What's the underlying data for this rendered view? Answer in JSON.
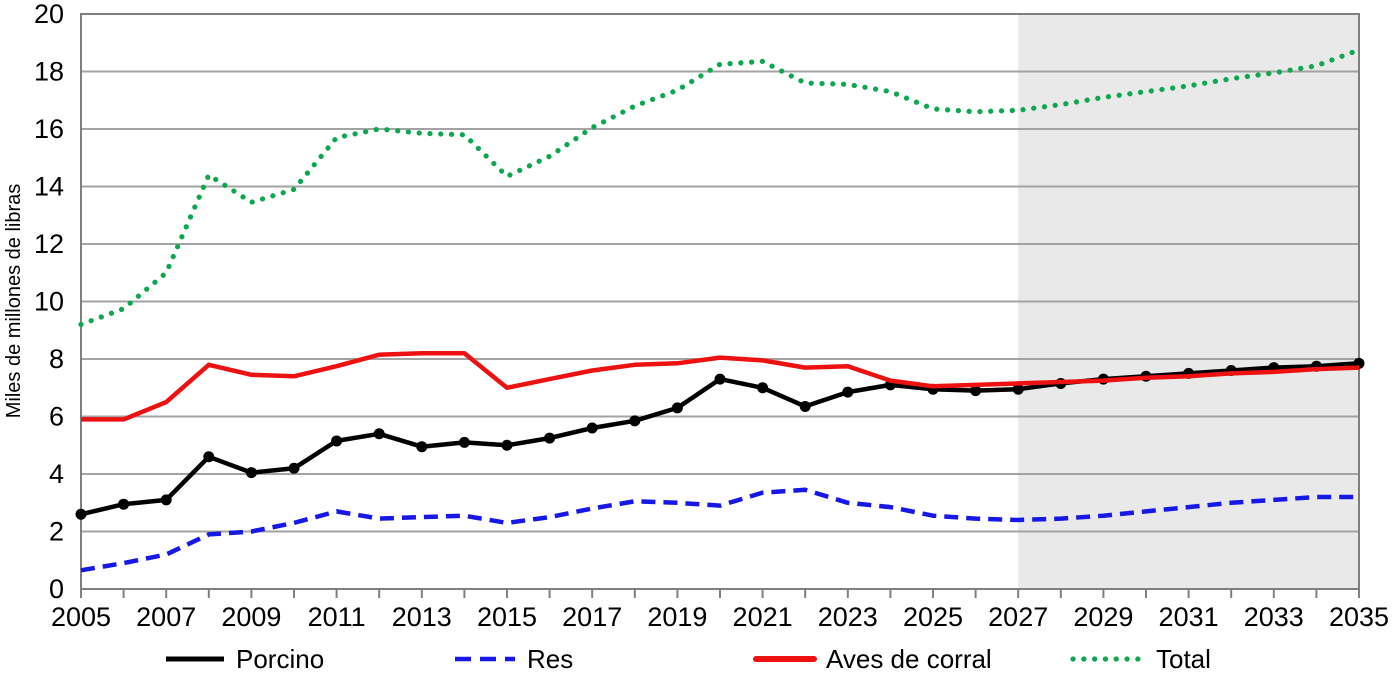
{
  "chart_data": {
    "type": "line",
    "title": "",
    "xlabel": "",
    "ylabel": "Miles de millones de libras",
    "ylim": [
      0,
      20
    ],
    "ytick_step": 2,
    "ytick_labels": [
      "0",
      "2",
      "4",
      "6",
      "8",
      "10",
      "12",
      "14",
      "16",
      "18",
      "20"
    ],
    "x": [
      2005,
      2006,
      2007,
      2008,
      2009,
      2010,
      2011,
      2012,
      2013,
      2014,
      2015,
      2016,
      2017,
      2018,
      2019,
      2020,
      2021,
      2022,
      2023,
      2024,
      2025,
      2026,
      2027,
      2028,
      2029,
      2030,
      2031,
      2032,
      2033,
      2034,
      2035
    ],
    "xtick_labels": [
      "2005",
      "2007",
      "2009",
      "2011",
      "2013",
      "2015",
      "2017",
      "2019",
      "2021",
      "2023",
      "2025",
      "2027",
      "2029",
      "2031",
      "2033",
      "2035"
    ],
    "grid": "horizontal",
    "legend_position": "bottom",
    "projection_band": {
      "start_year": 2027,
      "end_year": 2035,
      "color": "#E9E9E9"
    },
    "series": [
      {
        "name": "Porcino",
        "color": "#000000",
        "style": "solid-markers",
        "values": [
          2.6,
          2.95,
          3.1,
          4.6,
          4.05,
          4.2,
          5.15,
          5.4,
          4.95,
          5.1,
          5.0,
          5.25,
          5.6,
          5.85,
          6.3,
          7.3,
          7.0,
          6.35,
          6.85,
          7.1,
          6.95,
          6.9,
          6.95,
          7.15,
          7.3,
          7.4,
          7.5,
          7.6,
          7.7,
          7.75,
          7.85
        ]
      },
      {
        "name": "Res",
        "color": "#1717E8",
        "style": "dashed",
        "values": [
          0.65,
          0.9,
          1.2,
          1.9,
          2.0,
          2.3,
          2.7,
          2.45,
          2.5,
          2.55,
          2.3,
          2.5,
          2.8,
          3.05,
          3.0,
          2.9,
          3.35,
          3.45,
          3.0,
          2.85,
          2.55,
          2.45,
          2.4,
          2.45,
          2.55,
          2.7,
          2.85,
          3.0,
          3.1,
          3.2,
          3.2
        ]
      },
      {
        "name": "Aves de corral",
        "color": "#EE1111",
        "style": "solid",
        "values": [
          5.9,
          5.9,
          6.5,
          7.8,
          7.45,
          7.4,
          7.75,
          8.15,
          8.2,
          8.2,
          7.0,
          7.3,
          7.6,
          7.8,
          7.85,
          8.05,
          7.95,
          7.7,
          7.75,
          7.25,
          7.05,
          7.1,
          7.15,
          7.2,
          7.25,
          7.35,
          7.4,
          7.5,
          7.55,
          7.65,
          7.7
        ]
      },
      {
        "name": "Total",
        "color": "#0CA74F",
        "style": "dotted",
        "values": [
          9.2,
          9.75,
          11.0,
          14.4,
          13.45,
          13.9,
          15.7,
          16.0,
          15.85,
          15.8,
          14.35,
          15.05,
          16.05,
          16.8,
          17.35,
          18.25,
          18.35,
          17.6,
          17.55,
          17.3,
          16.7,
          16.6,
          16.65,
          16.85,
          17.1,
          17.3,
          17.5,
          17.75,
          17.95,
          18.2,
          18.75
        ]
      }
    ],
    "axis_colors": {
      "gridline": "#A3A3A3",
      "border": "#7F7F7F",
      "tick": "#7F7F7F"
    }
  }
}
